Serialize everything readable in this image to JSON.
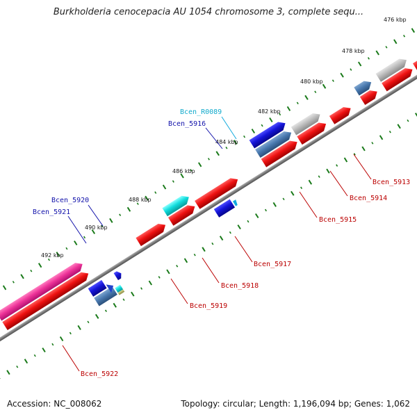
{
  "title": "Burkholderia cenocepacia AU 1054 chromosome 3, complete sequ...",
  "footer": {
    "accession": "Accession: NC_008062",
    "summary": "Topology: circular; Length: 1,196,094 bp; Genes: 1,062"
  },
  "colors": {
    "backbone": "#7a7a7a",
    "red": "#ee1111",
    "blue": "#1414d8",
    "steel": "#4a7ab0",
    "cyan": "#11dddd",
    "gray": "#bdbdbd",
    "pink": "#ee3399",
    "tick": "#1a7a1a",
    "label_red": "#bb0000",
    "label_blue": "#1111aa",
    "label_cyan": "#11aacc"
  },
  "kbp_labels": [
    "476 kbp",
    "478 kbp",
    "480 kbp",
    "482 kbp",
    "484 kbp",
    "486 kbp",
    "488 kbp",
    "490 kbp",
    "492 kbp"
  ],
  "gene_labels": {
    "r0089": "Bcen_R0089",
    "g5916": "Bcen_5916",
    "g5920": "Bcen_5920",
    "g5921": "Bcen_5921",
    "g5913": "Bcen_5913",
    "g5914": "Bcen_5914",
    "g5915": "Bcen_5915",
    "g5917": "Bcen_5917",
    "g5918": "Bcen_5918",
    "g5919": "Bcen_5919",
    "g5922": "Bcen_5922"
  }
}
